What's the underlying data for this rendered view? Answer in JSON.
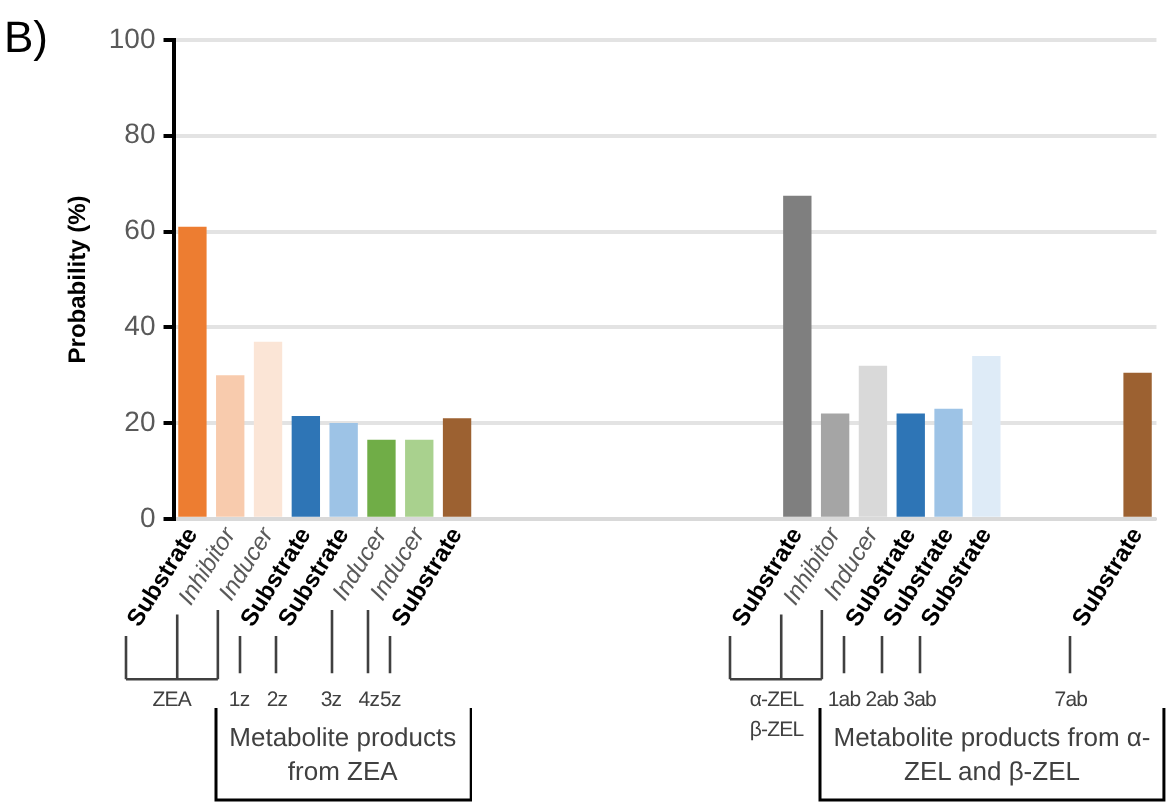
{
  "chart_data": {
    "type": "bar",
    "title": "B)",
    "ylabel": "Probability (%)",
    "categories": [
      "Substrate",
      "Inhibitor",
      "Inducer",
      "Substrate",
      "Substrate",
      "Inducer",
      "Inducer",
      "Substrate",
      null,
      null,
      null,
      null,
      null,
      null,
      null,
      null,
      "Substrate",
      "Inhibitor",
      "Inducer",
      "Substrate",
      "Substrate",
      "Substrate",
      null,
      null,
      null,
      "Substrate"
    ],
    "values": [
      61,
      30,
      37,
      21.5,
      20,
      16.5,
      16.5,
      21,
      null,
      null,
      null,
      null,
      null,
      null,
      null,
      null,
      67.5,
      22,
      32,
      22,
      23,
      34,
      null,
      null,
      null,
      30.5
    ],
    "colors": [
      "#ed7d31",
      "#f8cbad",
      "#fbe5d6",
      "#2e75b6",
      "#9dc3e6",
      "#70ad47",
      "#a9d18e",
      "#9c6131",
      null,
      null,
      null,
      null,
      null,
      null,
      null,
      null,
      "#7f7f7f",
      "#a5a5a5",
      "#d9d9d9",
      "#2e75b6",
      "#9dc3e6",
      "#deebf7",
      null,
      null,
      null,
      "#9c6131"
    ],
    "ylim": [
      0,
      100
    ],
    "yticks": [
      0,
      20,
      40,
      60,
      80,
      100
    ],
    "grid": "y",
    "annotations": [
      "ZEA",
      "1z",
      "2z",
      "3z",
      "4z",
      "5z",
      "Metabolite products from ZEA",
      "α-ZEL",
      "β-ZEL",
      "1ab",
      "2ab",
      "3ab",
      "7ab",
      "Metabolite products from α-ZEL and β-ZEL"
    ]
  }
}
